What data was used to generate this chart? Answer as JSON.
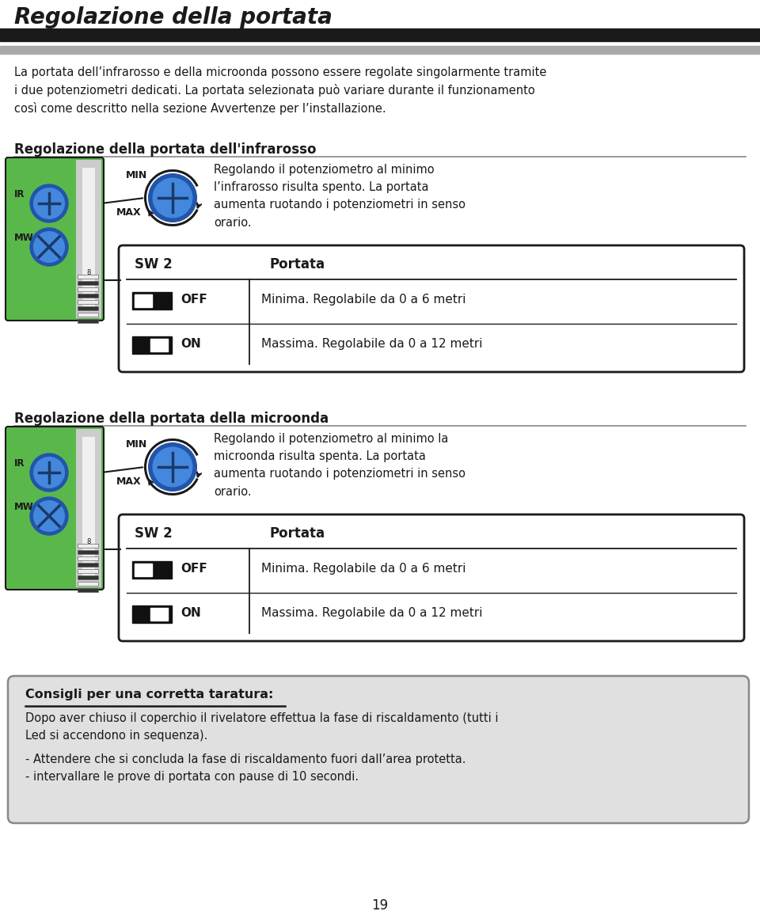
{
  "title": "Regolazione della portata",
  "title_fontsize": 20,
  "title_style": "italic",
  "title_weight": "bold",
  "header_bar_color1": "#1a1a1a",
  "header_bar_color2": "#aaaaaa",
  "intro_text": "La portata dell’infrarosso e della microonda possono essere regolate singolarmente tramite\ni due potenziometri dedicati. La portata selezionata può variare durante il funzionamento\ncosì come descritto nella sezione Avvertenze per l’installazione.",
  "section1_title": "Regolazione della portata dell'infrarosso",
  "section1_desc": "Regolando il potenziometro al minimo\nl’infrarosso risulta spento. La portata\naumenta ruotando i potenziometri in senso\norario.",
  "section2_title": "Regolazione della portata della microonda",
  "section2_desc": "Regolando il potenziometro al minimo la\nmicroonda risulta spenta. La portata\naumenta ruotando i potenziometri in senso\norario.",
  "sw2_header_col1": "SW 2",
  "sw2_header_col2": "Portata",
  "sw2_row1_col2": "Minima. Regolabile da 0 a 6 metri",
  "sw2_row1_label": "OFF",
  "sw2_row2_col2": "Massima. Regolabile da 0 a 12 metri",
  "sw2_row2_label": "ON",
  "tips_title": "Consigli per una corretta taratura:",
  "tips_text1": "Dopo aver chiuso il coperchio il rivelatore effettua la fase di riscaldamento (tutti i\nLed si accendono in sequenza).",
  "tips_text2": "- Attendere che si concluda la fase di riscaldamento fuori dall’area protetta.\n- intervallare le prove di portata con pause di 10 secondi.",
  "page_number": "19",
  "bg_color": "#ffffff",
  "text_color": "#1a1a1a",
  "green_color": "#5ab84b",
  "blue_knob_outer": "#2255aa",
  "blue_knob_inner": "#4488dd",
  "section_title_size": 12,
  "body_text_size": 10.5,
  "tips_box_bg": "#e0e0e0"
}
